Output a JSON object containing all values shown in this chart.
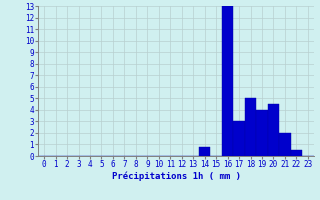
{
  "hours": [
    0,
    1,
    2,
    3,
    4,
    5,
    6,
    7,
    8,
    9,
    10,
    11,
    12,
    13,
    14,
    15,
    16,
    17,
    18,
    19,
    20,
    21,
    22,
    23
  ],
  "values": [
    0,
    0,
    0,
    0,
    0,
    0,
    0,
    0,
    0,
    0,
    0,
    0,
    0,
    0,
    0.8,
    0,
    13,
    3,
    5,
    4,
    4.5,
    2,
    0.5,
    0
  ],
  "bar_color": "#0000cc",
  "bar_edge_color": "#0000aa",
  "background_color": "#d0f0f0",
  "grid_color": "#b8d0d0",
  "xlabel": "Précipitations 1h ( mm )",
  "xlabel_color": "#0000cc",
  "tick_color": "#0000cc",
  "ylim": [
    0,
    13
  ],
  "yticks": [
    0,
    1,
    2,
    3,
    4,
    5,
    6,
    7,
    8,
    9,
    10,
    11,
    12,
    13
  ],
  "label_fontsize": 6.5,
  "tick_fontsize": 5.5
}
